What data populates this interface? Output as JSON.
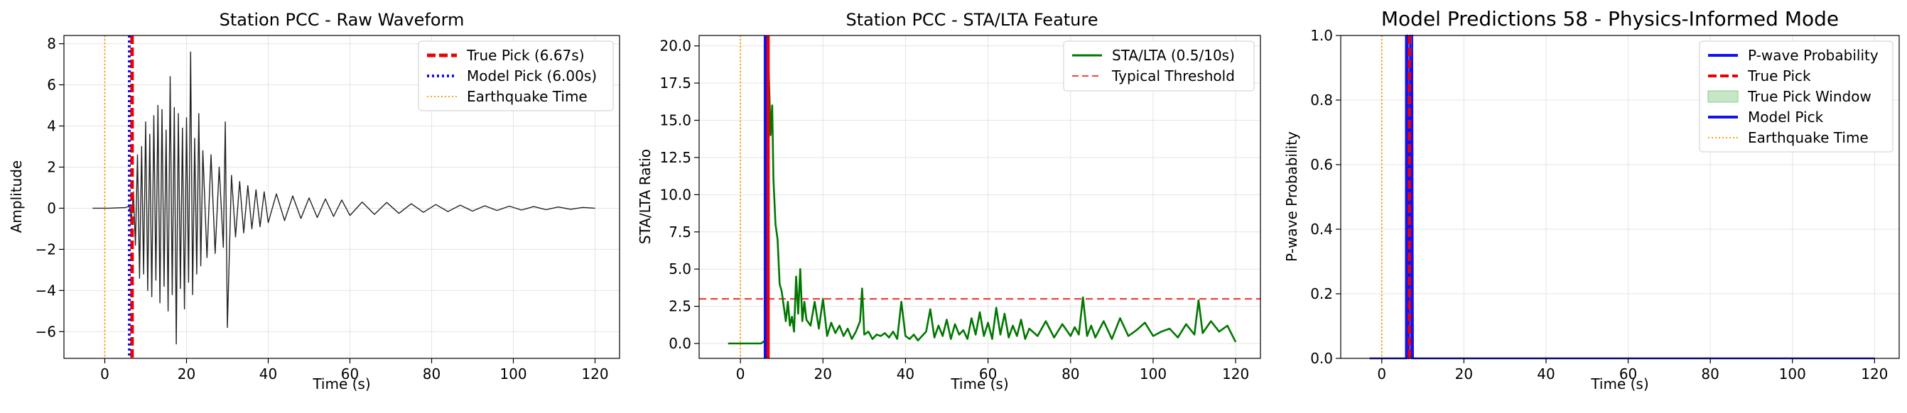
{
  "chart_data": [
    {
      "type": "line",
      "title": "Station PCC - Raw Waveform",
      "xlabel": "Time (s)",
      "ylabel": "Amplitude",
      "xlim": [
        -10,
        126
      ],
      "ylim": [
        -7.3,
        8.4
      ],
      "xticks": [
        0,
        20,
        40,
        60,
        80,
        100,
        120
      ],
      "xtick_labels": [
        "0",
        "20",
        "40",
        "60",
        "80",
        "100",
        "120"
      ],
      "yticks": [
        -6,
        -4,
        -2,
        0,
        2,
        4,
        6,
        8
      ],
      "ytick_labels": [
        "−6",
        "−4",
        "−2",
        "0",
        "2",
        "4",
        "6",
        "8"
      ],
      "grid": true,
      "legend_position": "top-right",
      "legend": [
        "True Pick (6.67s)",
        "Model Pick (6.00s)",
        "Earthquake Time"
      ],
      "series": [
        {
          "name": "",
          "color": "#222222",
          "x": [
            -3,
            -1,
            1,
            3,
            5,
            6,
            6.5,
            7,
            7.5,
            8,
            8.5,
            9,
            9.5,
            10,
            10.5,
            11,
            11.5,
            12,
            12.5,
            13,
            13.5,
            14,
            14.5,
            15,
            15.5,
            16,
            16.5,
            17,
            17.5,
            18,
            18.5,
            19,
            19.5,
            20,
            20.5,
            21,
            21.5,
            22,
            22.5,
            23,
            23.5,
            24,
            25,
            26,
            27,
            28,
            29,
            29.5,
            30,
            31,
            32,
            33,
            34,
            35,
            36,
            37,
            38,
            39,
            40,
            42,
            44,
            46,
            48,
            50,
            52,
            54,
            56,
            58,
            60,
            63,
            66,
            69,
            72,
            75,
            78,
            81,
            84,
            87,
            90,
            93,
            96,
            99,
            102,
            105,
            108,
            111,
            114,
            117,
            120
          ],
          "y": [
            0,
            0,
            0,
            0.02,
            0.03,
            0.1,
            -0.6,
            0.8,
            -1.8,
            2.6,
            -3.4,
            3.0,
            -3.2,
            4.2,
            -4.0,
            3.6,
            -4.3,
            4.5,
            -3.5,
            5.0,
            -4.6,
            4.8,
            -3.8,
            3.8,
            -5.0,
            6.4,
            -4.2,
            4.9,
            -6.6,
            4.6,
            -3.9,
            3.9,
            -4.9,
            4.4,
            -3.6,
            7.6,
            -4.2,
            3.4,
            -3.2,
            4.6,
            -2.8,
            2.8,
            -2.4,
            2.6,
            -2.2,
            2.0,
            -1.9,
            4.2,
            -5.8,
            1.6,
            -1.4,
            1.3,
            -1.2,
            1.1,
            -1.0,
            0.9,
            -0.9,
            0.8,
            -0.7,
            0.7,
            -0.6,
            0.6,
            -0.5,
            0.5,
            -0.45,
            0.45,
            -0.4,
            0.4,
            -0.35,
            0.3,
            -0.3,
            0.28,
            -0.25,
            0.22,
            -0.2,
            0.18,
            -0.16,
            0.15,
            -0.14,
            0.12,
            -0.11,
            0.1,
            -0.09,
            0.08,
            -0.07,
            0.06,
            -0.05,
            0.04,
            0
          ]
        }
      ],
      "vlines": [
        {
          "name": "True Pick (6.67s)",
          "x": 6.67,
          "color": "#ee0000",
          "style": "dashed"
        },
        {
          "name": "Model Pick (6.00s)",
          "x": 6.0,
          "color": "#1111ee",
          "style": "dotted"
        },
        {
          "name": "Earthquake Time",
          "x": 0,
          "color": "#ffa500",
          "style": "dotted"
        }
      ]
    },
    {
      "type": "line",
      "title": "Station PCC - STA/LTA Feature",
      "xlabel": "Time (s)",
      "ylabel": "STA/LTA Ratio",
      "xlim": [
        -10,
        126
      ],
      "ylim": [
        -1.0,
        20.7
      ],
      "xticks": [
        0,
        20,
        40,
        60,
        80,
        100,
        120
      ],
      "xtick_labels": [
        "0",
        "20",
        "40",
        "60",
        "80",
        "100",
        "120"
      ],
      "yticks": [
        0,
        2.5,
        5,
        7.5,
        10,
        12.5,
        15,
        17.5,
        20
      ],
      "ytick_labels": [
        "0.0",
        "2.5",
        "5.0",
        "7.5",
        "10.0",
        "12.5",
        "15.0",
        "17.5",
        "20.0"
      ],
      "grid": true,
      "legend_position": "top-right",
      "legend": [
        "STA/LTA (0.5/10s)",
        "Typical Threshold"
      ],
      "series": [
        {
          "name": "STA/LTA (0.5/10s)",
          "color": "#007700",
          "x": [
            -3,
            0,
            3,
            5,
            6,
            6.3,
            6.7,
            7,
            7.3,
            7.7,
            8,
            8.5,
            9,
            9.5,
            10,
            10.5,
            11,
            11.5,
            12,
            12.5,
            13,
            13.5,
            14,
            14.5,
            15,
            15.5,
            16,
            17,
            18,
            19,
            20,
            21,
            22,
            23,
            24,
            25,
            26,
            27,
            28,
            29,
            29.5,
            30,
            31,
            32,
            33,
            34,
            35,
            36,
            37,
            38,
            39,
            40,
            41,
            42,
            43,
            44,
            45,
            46,
            47,
            48,
            49,
            50,
            51,
            52,
            53,
            54,
            55,
            56,
            57,
            58,
            59,
            60,
            61,
            62,
            63,
            64,
            65,
            66,
            67,
            68,
            69,
            70,
            72,
            74,
            76,
            78,
            80,
            81,
            82,
            83,
            84,
            85,
            86,
            88,
            90,
            92,
            94,
            96,
            98,
            100,
            102,
            104,
            106,
            108,
            110,
            111,
            112,
            114,
            116,
            118,
            120
          ],
          "y": [
            0,
            0,
            0,
            0,
            0.2,
            10,
            19.5,
            17,
            14,
            16,
            11,
            8,
            7,
            4,
            3.5,
            2.5,
            1.5,
            2.8,
            1.2,
            1.8,
            0.8,
            4.5,
            2.0,
            5.0,
            1.5,
            2.8,
            1.6,
            1.2,
            2.8,
            1.0,
            3.0,
            0.5,
            1.4,
            0.7,
            1.2,
            0.5,
            1.0,
            0.3,
            0.8,
            1.5,
            3.7,
            0.6,
            0.8,
            0.3,
            0.6,
            0.5,
            0.7,
            0.4,
            0.8,
            0.3,
            2.8,
            0.5,
            0.3,
            0.6,
            0.2,
            0.5,
            0.8,
            2.3,
            0.4,
            1.2,
            0.5,
            1.6,
            0.3,
            1.3,
            0.6,
            0.9,
            0.3,
            1.7,
            0.6,
            2.1,
            0.5,
            1.4,
            0.3,
            2.4,
            0.6,
            2.0,
            0.4,
            1.2,
            0.5,
            1.6,
            0.3,
            1.0,
            0.5,
            1.5,
            0.4,
            1.3,
            0.5,
            1.1,
            0.6,
            3.1,
            0.5,
            1.2,
            0.4,
            1.5,
            0.3,
            1.7,
            0.5,
            0.9,
            1.4,
            0.5,
            0.8,
            1.0,
            0.4,
            1.3,
            0.6,
            2.9,
            0.7,
            1.5,
            0.8,
            1.2,
            0.1
          ]
        }
      ],
      "hlines": [
        {
          "name": "Typical Threshold",
          "y": 3.0,
          "color": "#ee4444",
          "style": "dashed"
        }
      ],
      "vlines": [
        {
          "name": "true-pick",
          "x": 6.67,
          "color": "#ee0000",
          "style": "solid-wide"
        },
        {
          "name": "model-pick",
          "x": 6.0,
          "color": "#1111ee",
          "style": "solid"
        },
        {
          "name": "earthquake",
          "x": 0,
          "color": "#ffa500",
          "style": "dotted"
        }
      ]
    },
    {
      "type": "line",
      "title": "Model Predictions 58 - Physics-Informed Mode",
      "xlabel": "Time (s)",
      "ylabel": "P-wave Probability",
      "xlim": [
        -10,
        126
      ],
      "ylim": [
        0,
        1.0
      ],
      "xticks": [
        0,
        20,
        40,
        60,
        80,
        100,
        120
      ],
      "xtick_labels": [
        "0",
        "20",
        "40",
        "60",
        "80",
        "100",
        "120"
      ],
      "yticks": [
        0,
        0.2,
        0.4,
        0.6,
        0.8,
        1.0
      ],
      "ytick_labels": [
        "0.0",
        "0.2",
        "0.4",
        "0.6",
        "0.8",
        "1.0"
      ],
      "grid": true,
      "legend_position": "top-right",
      "legend": [
        "P-wave Probability",
        "True Pick",
        "True Pick Window",
        "Model Pick",
        "Earthquake Time"
      ],
      "series": [
        {
          "name": "P-wave Probability",
          "color": "#1111ee",
          "x": [
            -3,
            5.5,
            5.9,
            6.0,
            6.1,
            6.3,
            6.6,
            6.9,
            7.2,
            7.4,
            7.6,
            120
          ],
          "y": [
            0,
            0,
            0,
            1.0,
            0.0,
            1.0,
            0.0,
            1.0,
            0.0,
            1.0,
            0,
            0
          ]
        }
      ],
      "window": {
        "name": "True Pick Window",
        "x0": 5.9,
        "x1": 7.5,
        "color": "#a8d8a8"
      },
      "vlines": [
        {
          "name": "True Pick",
          "x": 6.67,
          "color": "#ee0000",
          "style": "dashed"
        },
        {
          "name": "Model Pick",
          "x": 6.0,
          "color": "#1111ee",
          "style": "solid"
        },
        {
          "name": "Earthquake Time",
          "x": 0,
          "color": "#ffa500",
          "style": "dotted"
        }
      ]
    }
  ]
}
